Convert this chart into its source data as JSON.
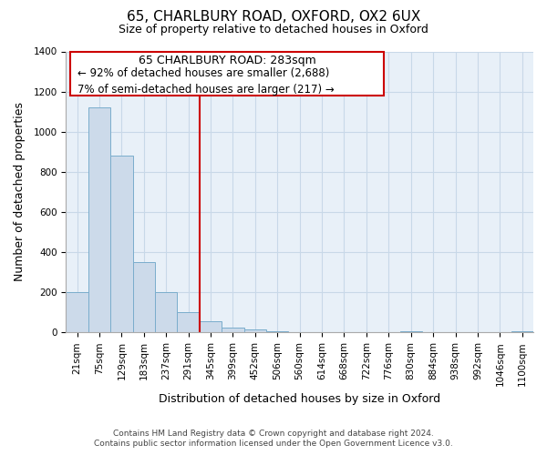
{
  "title": "65, CHARLBURY ROAD, OXFORD, OX2 6UX",
  "subtitle": "Size of property relative to detached houses in Oxford",
  "xlabel": "Distribution of detached houses by size in Oxford",
  "ylabel": "Number of detached properties",
  "bar_labels": [
    "21sqm",
    "75sqm",
    "129sqm",
    "183sqm",
    "237sqm",
    "291sqm",
    "345sqm",
    "399sqm",
    "452sqm",
    "506sqm",
    "560sqm",
    "614sqm",
    "668sqm",
    "722sqm",
    "776sqm",
    "830sqm",
    "884sqm",
    "938sqm",
    "992sqm",
    "1046sqm",
    "1100sqm"
  ],
  "bar_heights": [
    200,
    1120,
    880,
    350,
    200,
    100,
    55,
    25,
    15,
    5,
    0,
    0,
    0,
    0,
    0,
    5,
    0,
    0,
    0,
    0,
    5
  ],
  "bar_color": "#ccdaea",
  "bar_edge_color": "#7aadcc",
  "vline_color": "#cc0000",
  "annotation_title": "65 CHARLBURY ROAD: 283sqm",
  "annotation_line1": "← 92% of detached houses are smaller (2,688)",
  "annotation_line2": "7% of semi-detached houses are larger (217) →",
  "annotation_box_color": "#ffffff",
  "annotation_border_color": "#cc0000",
  "footer1": "Contains HM Land Registry data © Crown copyright and database right 2024.",
  "footer2": "Contains public sector information licensed under the Open Government Licence v3.0.",
  "ylim": [
    0,
    1400
  ],
  "yticks": [
    0,
    200,
    400,
    600,
    800,
    1000,
    1200,
    1400
  ],
  "title_fontsize": 11,
  "subtitle_fontsize": 9,
  "axis_label_fontsize": 9,
  "tick_fontsize": 7.5,
  "footer_fontsize": 6.5,
  "annotation_title_fontsize": 9,
  "annotation_text_fontsize": 8.5,
  "background_color": "#ffffff",
  "grid_color": "#c8d8e8"
}
